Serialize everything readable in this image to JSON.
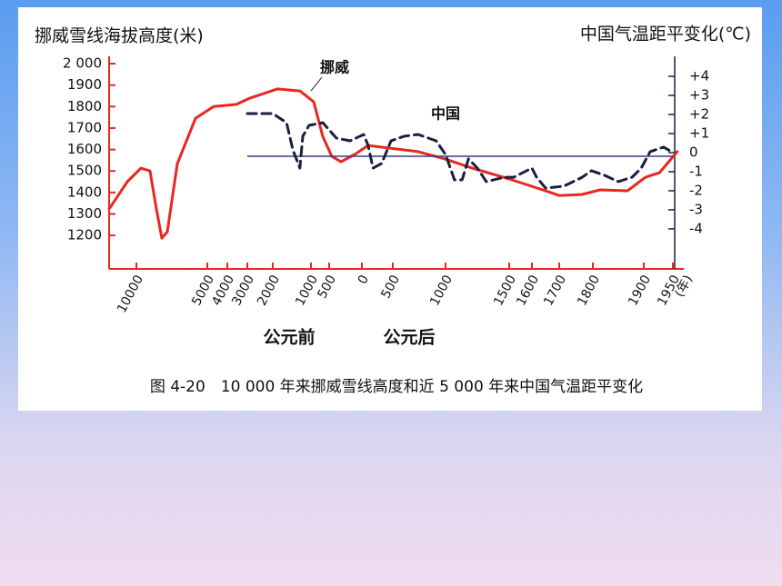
{
  "chart_data": {
    "type": "line",
    "title": "图 4-20　10 000 年来挪威雪线高度和近 5 000 年来中国气温距平变化",
    "ylabel": "挪威雪线海拔高度(米)",
    "y2label": "中国气温距平变化(℃)",
    "era_labels": [
      "公元前",
      "公元后"
    ],
    "x_unit": "(年)",
    "xlim": [
      -11900,
      1970
    ],
    "xticks": [
      {
        "value": -10000,
        "label": "10000"
      },
      {
        "value": -5000,
        "label": "5000"
      },
      {
        "value": -4000,
        "label": "4000"
      },
      {
        "value": -3000,
        "label": "3000"
      },
      {
        "value": -2000,
        "label": "2000"
      },
      {
        "value": -1000,
        "label": "1000"
      },
      {
        "value": -500,
        "label": "500"
      },
      0,
      500,
      1000,
      1500,
      1600,
      1700,
      1800,
      1900,
      1950
    ],
    "ylim": [
      1044,
      2034
    ],
    "yticks": [
      {
        "value": 2000,
        "label": "2 000"
      },
      1900,
      1800,
      1700,
      1600,
      1500,
      1400,
      1300,
      1200
    ],
    "y2lim": [
      -6.1,
      5.05
    ],
    "y2ticks": [
      {
        "value": 4,
        "label": "+4"
      },
      {
        "value": 3,
        "label": "+3"
      },
      {
        "value": 2,
        "label": "+2"
      },
      {
        "value": 1,
        "label": "+1"
      },
      0,
      -1,
      -2,
      -3,
      -4
    ],
    "series": [
      {
        "name": "挪威",
        "color": "#e8281e",
        "x": [
          -11900,
          -10633,
          -9680,
          -9040,
          -8590,
          -8205,
          -7820,
          -7115,
          -5830,
          -4680,
          -3545,
          -2890,
          -1880,
          -1290,
          -925,
          -675,
          -460,
          -320,
          -110,
          100,
          470,
          740,
          1000,
          1210,
          1500,
          1650,
          1700,
          1768,
          1814,
          1868,
          1903,
          1927,
          1958
        ],
        "values": [
          1323,
          1450,
          1513,
          1500,
          1323,
          1187,
          1217,
          1534,
          1746,
          1800,
          1810,
          1840,
          1882,
          1873,
          1822,
          1661,
          1568,
          1543,
          1577,
          1619,
          1606,
          1590,
          1555,
          1513,
          1463,
          1408,
          1386,
          1391,
          1412,
          1408,
          1471,
          1492,
          1590
        ]
      },
      {
        "name": "中国",
        "color": "#1a2040",
        "axis": "y2",
        "dashed": true,
        "x": [
          -3000,
          -2000,
          -1640,
          -1475,
          -1290,
          -1215,
          -1050,
          -675,
          -390,
          -180,
          30,
          100,
          180,
          320,
          470,
          610,
          740,
          910,
          1000,
          1070,
          1130,
          1180,
          1250,
          1320,
          1460,
          1520,
          1600,
          1617,
          1650,
          1714,
          1768,
          1796,
          1823,
          1850,
          1877,
          1895,
          1911,
          1934,
          1950
        ],
        "values": [
          2.05,
          2.05,
          1.57,
          0.14,
          -0.81,
          0.86,
          1.43,
          1.57,
          0.76,
          0.62,
          0.95,
          0.38,
          -0.81,
          -0.57,
          0.62,
          0.86,
          0.95,
          0.62,
          -0.1,
          -1.43,
          -1.43,
          -0.33,
          -0.81,
          -1.52,
          -1.29,
          -1.29,
          -0.81,
          -1.29,
          -1.86,
          -1.76,
          -1.29,
          -0.95,
          -1.19,
          -1.52,
          -1.29,
          -0.81,
          0.05,
          0.29,
          0
        ]
      }
    ]
  }
}
